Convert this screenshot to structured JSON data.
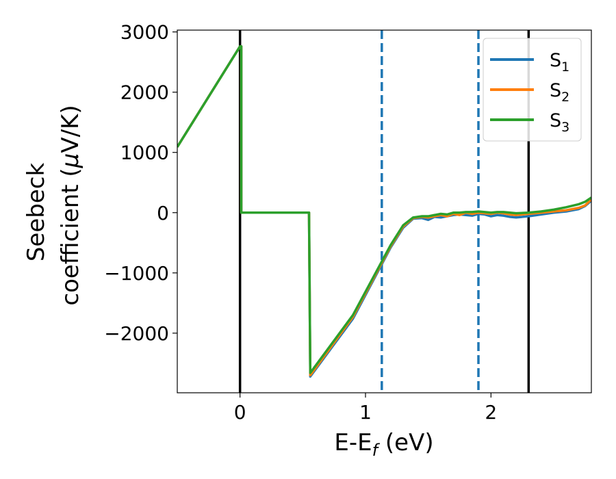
{
  "chart_data": {
    "type": "line",
    "xlabel": {
      "main": "E-E",
      "sub": "f",
      "unit": " (eV)"
    },
    "ylabel": {
      "line1": "Seebeck",
      "line2": "coefficient  (",
      "mu": "μ",
      "unit": "V/K)"
    },
    "xlim": [
      -0.5,
      2.8
    ],
    "ylim": [
      -2990,
      3030
    ],
    "xticks": [
      0,
      1,
      2
    ],
    "xtick_labels": [
      "0",
      "1",
      "2"
    ],
    "yticks": [
      -2000,
      -1000,
      0,
      1000,
      2000,
      3000
    ],
    "ytick_labels": [
      "−2000",
      "−1000",
      "0",
      "1000",
      "2000",
      "3000"
    ],
    "grid": false,
    "legend_position": "top-right",
    "vertical_lines": [
      {
        "x": 0.0,
        "color": "#000000",
        "style": "solid"
      },
      {
        "x": 2.3,
        "color": "#000000",
        "style": "solid"
      },
      {
        "x": 1.13,
        "color": "#1f77b4",
        "style": "dashed"
      },
      {
        "x": 1.9,
        "color": "#1f77b4",
        "style": "dashed"
      }
    ],
    "series": [
      {
        "name": "S",
        "sub": "1",
        "color": "#1f77b4",
        "x": [
          -0.5,
          0.0,
          0.01,
          0.01,
          0.55,
          0.56,
          0.9,
          1.2,
          1.3,
          1.38,
          1.45,
          1.5,
          1.55,
          1.6,
          1.65,
          1.7,
          1.75,
          1.8,
          1.85,
          1.9,
          1.95,
          2.0,
          2.05,
          2.1,
          2.15,
          2.2,
          2.3,
          2.4,
          2.5,
          2.6,
          2.7,
          2.75,
          2.8
        ],
        "y": [
          1090,
          2760,
          2760,
          0,
          0,
          -2720,
          -1760,
          -580,
          -250,
          -100,
          -90,
          -120,
          -70,
          -80,
          -60,
          -40,
          -30,
          -40,
          -50,
          -20,
          -30,
          -60,
          -40,
          -50,
          -70,
          -80,
          -60,
          -30,
          0,
          20,
          60,
          110,
          200
        ]
      },
      {
        "name": "S",
        "sub": "2",
        "color": "#ff7f0e",
        "x": [
          -0.5,
          0.0,
          0.01,
          0.01,
          0.55,
          0.56,
          0.9,
          1.2,
          1.3,
          1.38,
          1.45,
          1.5,
          1.55,
          1.6,
          1.65,
          1.7,
          1.75,
          1.8,
          1.85,
          1.9,
          1.95,
          2.0,
          2.05,
          2.1,
          2.15,
          2.2,
          2.3,
          2.4,
          2.5,
          2.6,
          2.7,
          2.75,
          2.8
        ],
        "y": [
          1090,
          2760,
          2760,
          0,
          0,
          -2700,
          -1730,
          -560,
          -230,
          -90,
          -70,
          -80,
          -60,
          -40,
          -60,
          -20,
          -40,
          0,
          -20,
          0,
          -10,
          -20,
          0,
          -10,
          -30,
          -40,
          -20,
          0,
          20,
          40,
          80,
          120,
          220
        ]
      },
      {
        "name": "S",
        "sub": "3",
        "color": "#2ca02c",
        "x": [
          -0.5,
          0.0,
          0.01,
          0.01,
          0.55,
          0.56,
          0.9,
          1.2,
          1.3,
          1.38,
          1.45,
          1.5,
          1.55,
          1.6,
          1.65,
          1.7,
          1.75,
          1.8,
          1.85,
          1.9,
          1.95,
          2.0,
          2.05,
          2.1,
          2.15,
          2.2,
          2.3,
          2.4,
          2.5,
          2.6,
          2.7,
          2.75,
          2.8
        ],
        "y": [
          1090,
          2760,
          2760,
          0,
          0,
          -2660,
          -1700,
          -540,
          -210,
          -80,
          -60,
          -60,
          -40,
          -20,
          -30,
          0,
          0,
          10,
          10,
          20,
          10,
          0,
          10,
          10,
          0,
          -10,
          0,
          20,
          50,
          90,
          140,
          180,
          250
        ]
      }
    ]
  }
}
